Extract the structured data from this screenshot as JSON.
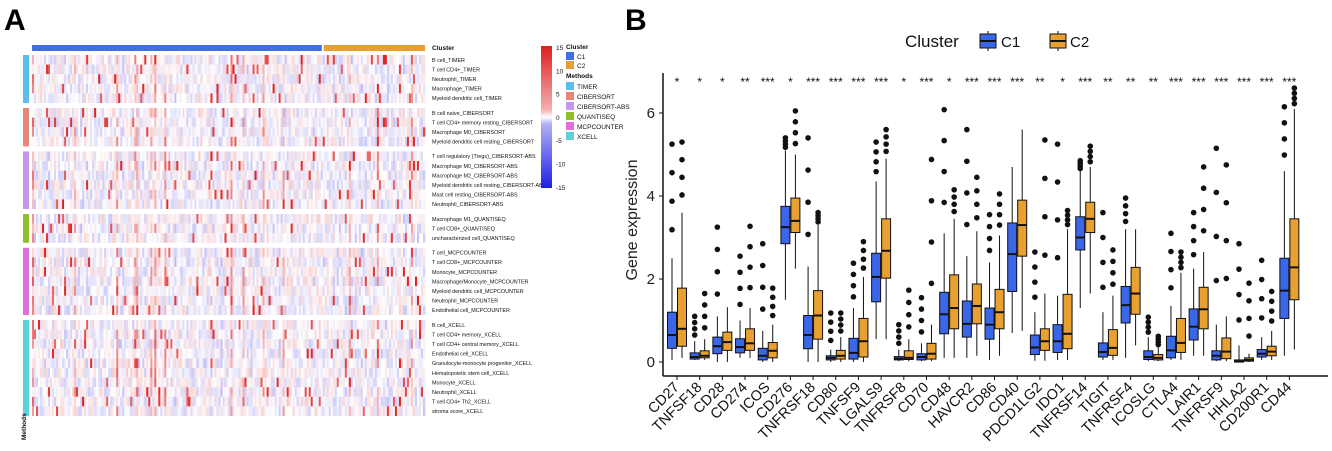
{
  "panels": {
    "a": "A",
    "b": "B"
  },
  "chart_data": [
    {
      "type": "heatmap",
      "title": "",
      "column_annotation": {
        "title": "Cluster",
        "levels": [
          "C1",
          "C2"
        ],
        "colors": [
          "#3f6fe0",
          "#e6a032"
        ],
        "c1_fraction": 0.74
      },
      "row_annotation": {
        "title": "Methods",
        "axis_label": "Methods"
      },
      "color_scale": {
        "min": -15,
        "max": 15,
        "ticks": [
          15,
          10,
          5,
          0,
          -5,
          -10,
          -15
        ],
        "colors": [
          "#1f1fe6",
          "#ffffff",
          "#e01e1e"
        ]
      },
      "groups": [
        {
          "method": "TIMER",
          "color": "#5bbcf0",
          "rows": [
            "B cell_TIMER",
            "T cell CD4+_TIMER",
            "Neutrophil_TIMER",
            "Macrophage_TIMER",
            "Myeloid dendritic cell_TIMER"
          ]
        },
        {
          "method": "CIBERSORT",
          "color": "#e8867a",
          "rows": [
            "B cell naive_CIBERSORT",
            "T cell CD4+ memory resting_CIBERSORT",
            "Macrophage M0_CIBERSORT",
            "Myeloid dendritic cell resting_CIBERSORT"
          ]
        },
        {
          "method": "CIBERSORT-ABS",
          "color": "#c795f0",
          "rows": [
            "T cell regulatory (Tregs)_CIBERSORT-ABS",
            "Macrophage M0_CIBERSORT-ABS",
            "Macrophage M2_CIBERSORT-ABS",
            "Myeloid dendritic cell resting_CIBERSORT-ABS",
            "Mast cell resting_CIBERSORT-ABS",
            "Neutrophil_CIBERSORT-ABS"
          ]
        },
        {
          "method": "QUANTISEQ",
          "color": "#8fbf2a",
          "rows": [
            "Macrophage M1_QUANTISEQ",
            "T cell CD8+_QUANTISEQ",
            "uncharacterized cell_QUANTISEQ"
          ]
        },
        {
          "method": "MCPCOUNTER",
          "color": "#e070d8",
          "rows": [
            "T cell_MCPCOUNTER",
            "T cell CD8+_MCPCOUNTER",
            "Monocyte_MCPCOUNTER",
            "Macrophage/Monocyte_MCPCOUNTER",
            "Myeloid dendritic cell_MCPCOUNTER",
            "Neutrophil_MCPCOUNTER",
            "Endothelial cell_MCPCOUNTER"
          ]
        },
        {
          "method": "XCELL",
          "color": "#5fd0d8",
          "rows": [
            "B cell_XCELL",
            "T cell CD4+ memory_XCELL",
            "T cell CD4+ central memory_XCELL",
            "Endothelial cell_XCELL",
            "Granulocyte-monocyte progenitor_XCELL",
            "Hematopoietic stem cell_XCELL",
            "Monocyte_XCELL",
            "Neutrophil_XCELL",
            "T cell CD4+ Th2_XCELL",
            "stroma score_XCELL"
          ]
        }
      ]
    },
    {
      "type": "box",
      "title": "",
      "xlabel": "",
      "ylabel": "Gene expression",
      "ylim": [
        0,
        6.8
      ],
      "yticks": [
        0,
        2,
        4,
        6
      ],
      "legend": {
        "title": "Cluster",
        "position": "top",
        "entries": [
          "C1",
          "C2"
        ],
        "colors": [
          "#3a66e8",
          "#e8a030"
        ]
      },
      "stat_order": [
        "whisker_low",
        "q1",
        "median",
        "q3",
        "whisker_high",
        "max_outlier"
      ],
      "genes": [
        {
          "name": "CD27",
          "sig": "*",
          "C1": [
            0.05,
            0.33,
            0.65,
            1.2,
            2.5,
            5.25
          ],
          "C2": [
            0.1,
            0.38,
            0.8,
            1.78,
            3.6,
            5.3
          ]
        },
        {
          "name": "TNFSF18",
          "sig": "*",
          "C1": [
            0.05,
            0.07,
            0.12,
            0.22,
            0.5,
            1.1
          ],
          "C2": [
            0.05,
            0.1,
            0.15,
            0.27,
            0.55,
            1.65
          ]
        },
        {
          "name": "CD28",
          "sig": "*",
          "C1": [
            0,
            0.2,
            0.38,
            0.6,
            1.1,
            3.25
          ],
          "C2": [
            0,
            0.28,
            0.48,
            0.72,
            1.32,
            null
          ]
        },
        {
          "name": "CD274",
          "sig": "**",
          "C1": [
            0.1,
            0.22,
            0.36,
            0.56,
            1.0,
            2.55
          ],
          "C2": [
            0.1,
            0.28,
            0.45,
            0.8,
            1.3,
            3.27
          ]
        },
        {
          "name": "ICOS",
          "sig": "***",
          "C1": [
            0,
            0.05,
            0.15,
            0.33,
            0.75,
            2.85
          ],
          "C2": [
            0,
            0.1,
            0.27,
            0.47,
            0.9,
            1.78
          ]
        },
        {
          "name": "CD276",
          "sig": "*",
          "C1": [
            1.5,
            2.85,
            3.25,
            3.75,
            5.1,
            5.4
          ],
          "C2": [
            2.25,
            3.12,
            3.4,
            3.95,
            5.0,
            6.05
          ]
        },
        {
          "name": "TNFRSF18",
          "sig": "***",
          "C1": [
            0,
            0.32,
            0.65,
            1.12,
            2.3,
            5.4
          ],
          "C2": [
            0,
            0.55,
            1.12,
            1.72,
            3.3,
            3.6
          ]
        },
        {
          "name": "CD80",
          "sig": "***",
          "C1": [
            0,
            0.05,
            0.1,
            0.15,
            0.3,
            1.18
          ],
          "C2": [
            0,
            0.07,
            0.15,
            0.28,
            0.6,
            1.18
          ]
        },
        {
          "name": "TNFSF9",
          "sig": "***",
          "C1": [
            0,
            0.07,
            0.22,
            0.57,
            1.3,
            2.38
          ],
          "C2": [
            0,
            0.12,
            0.5,
            1.05,
            2.05,
            2.9
          ]
        },
        {
          "name": "LGALS9",
          "sig": "***",
          "C1": [
            0.55,
            1.45,
            2.05,
            2.62,
            4.35,
            5.3
          ],
          "C2": [
            0.55,
            2.02,
            2.68,
            3.45,
            4.9,
            5.6
          ]
        },
        {
          "name": "TNFRSF8",
          "sig": "*",
          "C1": [
            0.02,
            0.05,
            0.08,
            0.13,
            0.3,
            0.9
          ],
          "C2": [
            0.02,
            0.06,
            0.1,
            0.27,
            0.55,
            1.73
          ]
        },
        {
          "name": "CD70",
          "sig": "***",
          "C1": [
            0.02,
            0.05,
            0.12,
            0.2,
            0.45,
            1.55
          ],
          "C2": [
            0.02,
            0.07,
            0.2,
            0.45,
            0.9,
            4.88
          ]
        },
        {
          "name": "CD48",
          "sig": "*",
          "C1": [
            0.1,
            0.68,
            1.15,
            1.68,
            3.1,
            6.08
          ],
          "C2": [
            0.1,
            0.8,
            1.3,
            2.1,
            3.45,
            4.15
          ]
        },
        {
          "name": "HAVCR2",
          "sig": "***",
          "C1": [
            0.1,
            0.6,
            0.92,
            1.47,
            2.55,
            5.6
          ],
          "C2": [
            0.15,
            0.92,
            1.35,
            1.88,
            3.15,
            4.45
          ]
        },
        {
          "name": "CD86",
          "sig": "***",
          "C1": [
            0.05,
            0.55,
            0.9,
            1.3,
            2.4,
            3.55
          ],
          "C2": [
            0.15,
            0.8,
            1.2,
            1.75,
            3.05,
            4.05
          ]
        },
        {
          "name": "CD40",
          "sig": "***",
          "C1": [
            0.7,
            1.7,
            2.6,
            3.35,
            4.7,
            null
          ],
          "C2": [
            0.75,
            2.55,
            3.3,
            3.9,
            5.6,
            null
          ]
        },
        {
          "name": "PDCD1LG2",
          "sig": "**",
          "C1": [
            0.03,
            0.18,
            0.35,
            0.65,
            1.2,
            2.65
          ],
          "C2": [
            0.03,
            0.28,
            0.5,
            0.8,
            1.65,
            5.35
          ]
        },
        {
          "name": "IDO1",
          "sig": "*",
          "C1": [
            0.05,
            0.23,
            0.5,
            0.9,
            1.6,
            5.25
          ],
          "C2": [
            0.05,
            0.32,
            0.68,
            1.63,
            3.2,
            3.65
          ]
        },
        {
          "name": "TNFRSF14",
          "sig": "***",
          "C1": [
            1.3,
            2.7,
            3.0,
            3.5,
            4.6,
            4.85
          ],
          "C2": [
            1.65,
            3.12,
            3.45,
            3.85,
            4.7,
            5.2
          ]
        },
        {
          "name": "TIGIT",
          "sig": "**",
          "C1": [
            0.05,
            0.12,
            0.24,
            0.46,
            1.2,
            3.6
          ],
          "C2": [
            0.05,
            0.16,
            0.34,
            0.78,
            1.6,
            2.7
          ]
        },
        {
          "name": "TNFRSF4",
          "sig": "**",
          "C1": [
            0.1,
            0.94,
            1.37,
            1.82,
            3.2,
            3.95
          ],
          "C2": [
            0.4,
            1.15,
            1.65,
            2.28,
            3.2,
            null
          ]
        },
        {
          "name": "ICOSLG",
          "sig": "**",
          "C1": [
            0.02,
            0.06,
            0.12,
            0.27,
            0.6,
            1.08
          ],
          "C2": [
            0.02,
            0.05,
            0.1,
            0.18,
            0.35,
            0.62
          ]
        },
        {
          "name": "CTLA4",
          "sig": "***",
          "C1": [
            0.05,
            0.1,
            0.28,
            0.62,
            1.35,
            3.1
          ],
          "C2": [
            0.05,
            0.23,
            0.46,
            1.05,
            2.15,
            2.65
          ]
        },
        {
          "name": "LAIR1",
          "sig": "***",
          "C1": [
            0.15,
            0.53,
            0.85,
            1.28,
            2.25,
            3.6
          ],
          "C2": [
            0.15,
            0.8,
            1.27,
            1.8,
            2.65,
            4.7
          ]
        },
        {
          "name": "TNFRSF9",
          "sig": "***",
          "C1": [
            0.02,
            0.05,
            0.15,
            0.27,
            0.9,
            5.15
          ],
          "C2": [
            0.02,
            0.08,
            0.25,
            0.58,
            1.1,
            4.75
          ]
        },
        {
          "name": "HHLA2",
          "sig": "***",
          "C1": [
            0,
            0,
            0.01,
            0.05,
            0.4,
            2.85
          ],
          "C2": [
            0,
            0.02,
            0.05,
            0.1,
            0.2,
            1.9
          ]
        },
        {
          "name": "CD200R1",
          "sig": "***",
          "C1": [
            0.05,
            0.12,
            0.2,
            0.3,
            0.6,
            2.45
          ],
          "C2": [
            0.05,
            0.15,
            0.25,
            0.38,
            0.75,
            1.7
          ]
        },
        {
          "name": "CD44",
          "sig": "***",
          "C1": [
            0.15,
            1.05,
            1.72,
            2.5,
            4.6,
            6.15
          ],
          "C2": [
            0.3,
            1.5,
            2.28,
            3.45,
            6.1,
            6.6
          ]
        }
      ]
    }
  ]
}
